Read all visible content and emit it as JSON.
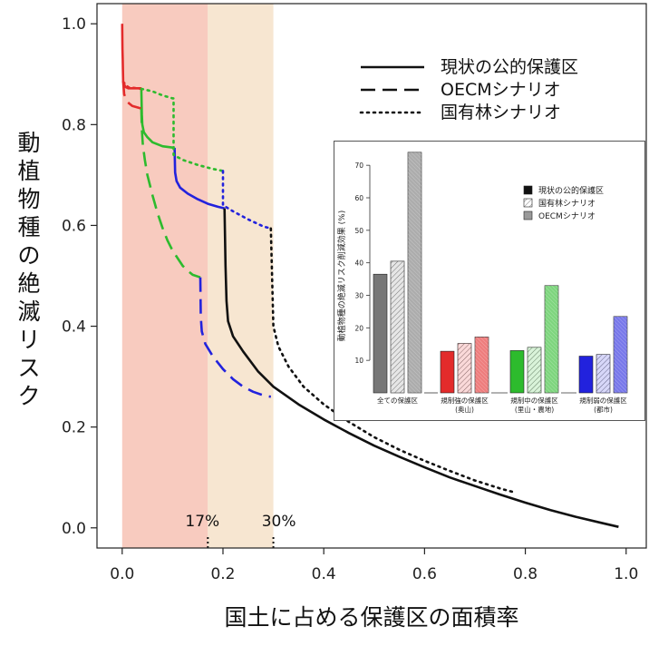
{
  "chart_data": [
    {
      "type": "line",
      "xlabel": "国土に占める保護区の面積率",
      "ylabel": "動植物種の絶滅リスク",
      "xlim": [
        -0.05,
        1.04
      ],
      "ylim": [
        -0.04,
        1.04
      ],
      "x_ticks": [
        0.0,
        0.2,
        0.4,
        0.6,
        0.8,
        1.0
      ],
      "y_ticks": [
        0.0,
        0.2,
        0.4,
        0.6,
        0.8,
        1.0
      ],
      "x_tick_labels": [
        "0.0",
        "0.2",
        "0.4",
        "0.6",
        "0.8",
        "1.0"
      ],
      "y_tick_labels": [
        "0.0",
        "0.2",
        "0.4",
        "0.6",
        "0.8",
        "1.0"
      ],
      "grid": false,
      "legend_position": "top-right",
      "legend": [
        {
          "label": "現状の公的保護区",
          "style": "solid"
        },
        {
          "label": "OECMシナリオ",
          "style": "dashed"
        },
        {
          "label": "国有林シナリオ",
          "style": "dotted"
        }
      ],
      "shaded_regions": [
        {
          "x": [
            0.0,
            0.17
          ],
          "color": "#f8cbbf"
        },
        {
          "x": [
            0.17,
            0.3
          ],
          "color": "#f7e6d1"
        }
      ],
      "markers": [
        {
          "x": 0.17,
          "label": "17%"
        },
        {
          "x": 0.3,
          "label": "30%"
        }
      ],
      "series": [
        {
          "scenario": "現状の公的保護区",
          "style": "solid",
          "color": "#e32b2b",
          "points": [
            [
              0.0,
              1.0
            ],
            [
              0.0005,
              0.95
            ],
            [
              0.001,
              0.93
            ],
            [
              0.0015,
              0.91
            ],
            [
              0.002,
              0.885
            ],
            [
              0.006,
              0.875
            ],
            [
              0.012,
              0.872
            ],
            [
              0.03,
              0.872
            ],
            [
              0.038,
              0.872
            ]
          ]
        },
        {
          "scenario": "現状の公的保護区",
          "style": "solid",
          "color": "#2dbb2d",
          "points": [
            [
              0.038,
              0.872
            ],
            [
              0.039,
              0.82
            ],
            [
              0.04,
              0.8
            ],
            [
              0.043,
              0.785
            ],
            [
              0.05,
              0.775
            ],
            [
              0.06,
              0.765
            ],
            [
              0.08,
              0.757
            ],
            [
              0.104,
              0.754
            ]
          ]
        },
        {
          "scenario": "現状の公的保護区",
          "style": "solid",
          "color": "#2222dd",
          "points": [
            [
              0.104,
              0.754
            ],
            [
              0.105,
              0.705
            ],
            [
              0.108,
              0.688
            ],
            [
              0.115,
              0.675
            ],
            [
              0.13,
              0.663
            ],
            [
              0.15,
              0.652
            ],
            [
              0.17,
              0.643
            ],
            [
              0.19,
              0.637
            ],
            [
              0.203,
              0.634
            ]
          ]
        },
        {
          "scenario": "現状の公的保護区",
          "style": "solid",
          "color": "#111111",
          "points": [
            [
              0.203,
              0.634
            ],
            [
              0.205,
              0.52
            ],
            [
              0.207,
              0.45
            ],
            [
              0.21,
              0.41
            ],
            [
              0.22,
              0.38
            ],
            [
              0.24,
              0.35
            ],
            [
              0.27,
              0.31
            ],
            [
              0.3,
              0.28
            ],
            [
              0.35,
              0.245
            ],
            [
              0.4,
              0.215
            ],
            [
              0.45,
              0.188
            ],
            [
              0.5,
              0.163
            ],
            [
              0.55,
              0.141
            ],
            [
              0.6,
              0.12
            ],
            [
              0.65,
              0.1
            ],
            [
              0.7,
              0.083
            ],
            [
              0.75,
              0.066
            ],
            [
              0.8,
              0.05
            ],
            [
              0.85,
              0.035
            ],
            [
              0.9,
              0.022
            ],
            [
              0.95,
              0.01
            ],
            [
              0.985,
              0.002
            ]
          ]
        },
        {
          "scenario": "OECMシナリオ",
          "style": "dashed",
          "color": "#e32b2b",
          "points": [
            [
              0.002,
              0.885
            ],
            [
              0.004,
              0.86
            ],
            [
              0.01,
              0.845
            ],
            [
              0.02,
              0.837
            ],
            [
              0.038,
              0.832
            ]
          ]
        },
        {
          "scenario": "OECMシナリオ",
          "style": "dashed",
          "color": "#2dbb2d",
          "points": [
            [
              0.038,
              0.832
            ],
            [
              0.039,
              0.79
            ],
            [
              0.041,
              0.76
            ],
            [
              0.045,
              0.73
            ],
            [
              0.05,
              0.7
            ],
            [
              0.06,
              0.66
            ],
            [
              0.07,
              0.625
            ],
            [
              0.08,
              0.595
            ],
            [
              0.09,
              0.57
            ],
            [
              0.1,
              0.55
            ],
            [
              0.11,
              0.535
            ],
            [
              0.12,
              0.52
            ],
            [
              0.13,
              0.51
            ],
            [
              0.14,
              0.502
            ],
            [
              0.155,
              0.497
            ]
          ]
        },
        {
          "scenario": "OECMシナリオ",
          "style": "dashed",
          "color": "#2222dd",
          "points": [
            [
              0.155,
              0.497
            ],
            [
              0.156,
              0.42
            ],
            [
              0.158,
              0.39
            ],
            [
              0.165,
              0.365
            ],
            [
              0.18,
              0.34
            ],
            [
              0.2,
              0.315
            ],
            [
              0.22,
              0.295
            ],
            [
              0.24,
              0.28
            ],
            [
              0.26,
              0.27
            ],
            [
              0.28,
              0.263
            ],
            [
              0.295,
              0.26
            ]
          ]
        },
        {
          "scenario": "国有林シナリオ",
          "style": "dotted",
          "color": "#e32b2b",
          "points": [
            [
              0.002,
              0.885
            ],
            [
              0.012,
              0.874
            ],
            [
              0.03,
              0.872
            ],
            [
              0.038,
              0.871
            ]
          ]
        },
        {
          "scenario": "国有林シナリオ",
          "style": "dotted",
          "color": "#2dbb2d",
          "points": [
            [
              0.038,
              0.871
            ],
            [
              0.06,
              0.866
            ],
            [
              0.08,
              0.858
            ],
            [
              0.1,
              0.852
            ],
            [
              0.102,
              0.852
            ],
            [
              0.102,
              0.74
            ],
            [
              0.12,
              0.73
            ],
            [
              0.15,
              0.72
            ],
            [
              0.18,
              0.712
            ],
            [
              0.2,
              0.708
            ]
          ]
        },
        {
          "scenario": "国有林シナリオ",
          "style": "dotted",
          "color": "#2222dd",
          "points": [
            [
              0.2,
              0.708
            ],
            [
              0.2,
              0.64
            ],
            [
              0.22,
              0.628
            ],
            [
              0.25,
              0.612
            ],
            [
              0.28,
              0.598
            ],
            [
              0.295,
              0.594
            ]
          ]
        },
        {
          "scenario": "国有林シナリオ",
          "style": "dotted",
          "color": "#111111",
          "points": [
            [
              0.295,
              0.594
            ],
            [
              0.3,
              0.4
            ],
            [
              0.31,
              0.36
            ],
            [
              0.33,
              0.32
            ],
            [
              0.36,
              0.28
            ],
            [
              0.4,
              0.245
            ],
            [
              0.45,
              0.21
            ],
            [
              0.5,
              0.18
            ],
            [
              0.55,
              0.155
            ],
            [
              0.6,
              0.133
            ],
            [
              0.65,
              0.113
            ],
            [
              0.7,
              0.094
            ],
            [
              0.75,
              0.078
            ],
            [
              0.78,
              0.07
            ]
          ]
        }
      ]
    },
    {
      "type": "bar",
      "ylabel": "動植物種の絶滅リスク削減効果 (%)",
      "ylim": [
        0,
        72
      ],
      "y_ticks": [
        10,
        20,
        30,
        40,
        50,
        60,
        70
      ],
      "y_tick_labels": [
        "10",
        "20",
        "30",
        "40",
        "50",
        "60",
        "70"
      ],
      "legend_position": "top-right",
      "legend": [
        {
          "label": "現状の公的保護区",
          "pattern": "solid"
        },
        {
          "label": "国有林シナリオ",
          "pattern": "hatch"
        },
        {
          "label": "OECMシナリオ",
          "pattern": "shaded"
        }
      ],
      "categories": [
        {
          "line1": "全ての保護区",
          "line2": "",
          "color": "#777777"
        },
        {
          "line1": "規制強の保護区",
          "line2": "(奥山)",
          "color": "#e32b2b"
        },
        {
          "line1": "規制中の保護区",
          "line2": "(里山・農地)",
          "color": "#2dbb2d"
        },
        {
          "line1": "規制弱の保護区",
          "line2": "(都市)",
          "color": "#2222dd"
        }
      ],
      "series": [
        {
          "name": "現状の公的保護区",
          "values": [
            36.5,
            12.8,
            13.0,
            11.3
          ]
        },
        {
          "name": "国有林シナリオ",
          "values": [
            40.5,
            15.2,
            14.0,
            11.8
          ]
        },
        {
          "name": "OECMシナリオ",
          "values": [
            74.0,
            17.2,
            33.0,
            23.5
          ]
        }
      ]
    }
  ]
}
